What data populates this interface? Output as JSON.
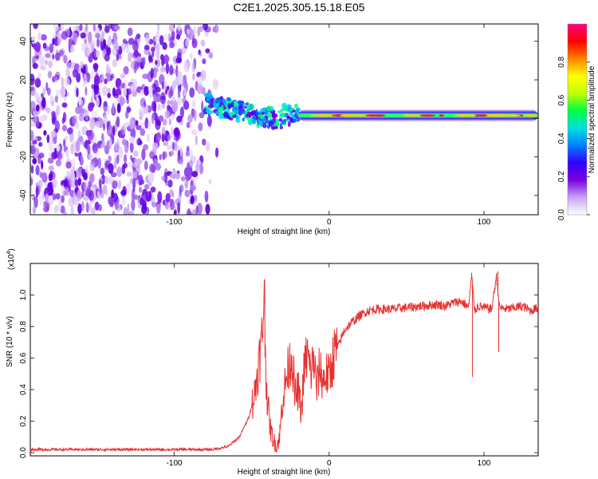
{
  "title": "C2E1.2025.305.15.18.E05",
  "chart_data": [
    {
      "type": "heatmap",
      "xlabel": "Height of straight line (km)",
      "ylabel": "Frequency (Hz)",
      "xlim": [
        -193,
        135
      ],
      "ylim": [
        -50,
        49
      ],
      "xticks": [
        -100,
        0,
        100
      ],
      "yticks": [
        -40,
        -20,
        0,
        20,
        40
      ],
      "description_features": {
        "noise_region_x": [
          -193,
          -70
        ],
        "transition_region_x": [
          -80,
          -20
        ],
        "carrier_region_x": [
          -20,
          135
        ],
        "carrier_frequency_hz": 1.5
      },
      "colorbar": {
        "label": "Normalized spectral amplitude",
        "range": [
          0,
          1
        ],
        "ticks": [
          0.0,
          0.2,
          0.4,
          0.6,
          0.8
        ],
        "colors": [
          "#ffffff",
          "#c9a3f5",
          "#7a00e0",
          "#3300ff",
          "#0080ff",
          "#00e0e0",
          "#00ff40",
          "#c0ff00",
          "#ffff00",
          "#ff8000",
          "#ff0000",
          "#ff0080"
        ]
      }
    },
    {
      "type": "line",
      "xlabel": "Height of straight line (km)",
      "ylabel": "SNR (10 * v/v)",
      "y_multiplier": "(x10",
      "y_multiplier_exp": "4",
      "xlim": [
        -193,
        135
      ],
      "ylim": [
        -0.02,
        1.2
      ],
      "xticks": [
        -100,
        0,
        100
      ],
      "yticks": [
        0.0,
        0.2,
        0.4,
        0.6,
        0.8,
        1.0
      ],
      "color": "#e83030",
      "series": [
        {
          "name": "SNR",
          "x": [
            -193,
            -150,
            -100,
            -75,
            -65,
            -58,
            -52,
            -48,
            -45,
            -43,
            -42,
            -41,
            -40,
            -38,
            -36,
            -34,
            -32,
            -30,
            -28,
            -26,
            -24,
            -22,
            -20,
            -18,
            -16,
            -14,
            -12,
            -10,
            -8,
            -6,
            -4,
            -2,
            0,
            3,
            6,
            10,
            15,
            20,
            25,
            30,
            40,
            50,
            60,
            70,
            75,
            80,
            85,
            88,
            90,
            92,
            94,
            96,
            100,
            105,
            108,
            110,
            115,
            120,
            125,
            130,
            135
          ],
          "values": [
            0.02,
            0.02,
            0.02,
            0.02,
            0.04,
            0.1,
            0.22,
            0.38,
            0.6,
            0.75,
            1.1,
            0.55,
            0.35,
            0.15,
            0.08,
            0.04,
            0.1,
            0.35,
            0.45,
            0.55,
            0.62,
            0.35,
            0.4,
            0.25,
            0.55,
            0.62,
            0.5,
            0.6,
            0.4,
            0.55,
            0.45,
            0.5,
            0.48,
            0.62,
            0.68,
            0.78,
            0.83,
            0.87,
            0.9,
            0.91,
            0.91,
            0.92,
            0.93,
            0.94,
            0.93,
            0.95,
            0.96,
            0.94,
            0.92,
            1.12,
            0.9,
            0.93,
            0.92,
            0.91,
            1.12,
            0.92,
            0.91,
            0.92,
            0.93,
            0.9,
            0.92
          ],
          "spikes": [
            {
              "x": -42,
              "y": 1.1,
              "dir": "up"
            },
            {
              "x": 92,
              "y": 1.14,
              "dir": "up"
            },
            {
              "x": 92.5,
              "y": 0.48,
              "dir": "down"
            },
            {
              "x": 109,
              "y": 1.15,
              "dir": "up"
            },
            {
              "x": 109.5,
              "y": 0.64,
              "dir": "down"
            }
          ]
        }
      ]
    }
  ]
}
